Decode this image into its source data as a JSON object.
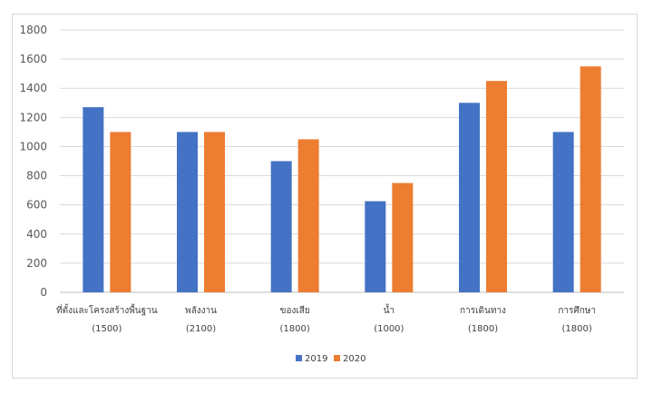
{
  "chart_data": {
    "type": "bar",
    "categories": [
      {
        "label": "ที่ตั้งและโครงสร้างพื้นฐาน",
        "sub": "(1500)"
      },
      {
        "label": "พลังงาน",
        "sub": "(2100)"
      },
      {
        "label": "ของเสีย",
        "sub": "(1800)"
      },
      {
        "label": "น้ำ",
        "sub": "(1000)"
      },
      {
        "label": "การเดินทาง",
        "sub": "(1800)"
      },
      {
        "label": "การศึกษา",
        "sub": "(1800)"
      }
    ],
    "series": [
      {
        "name": "2019",
        "color": "#4472c4",
        "values": [
          1270,
          1100,
          900,
          625,
          1300,
          1100
        ]
      },
      {
        "name": "2020",
        "color": "#ed7d31",
        "values": [
          1100,
          1100,
          1050,
          750,
          1450,
          1550
        ]
      }
    ],
    "ylim": [
      0,
      1800
    ],
    "yticks": [
      "0",
      "200",
      "400",
      "600",
      "800",
      "1000",
      "1200",
      "1400",
      "1600",
      "1800"
    ],
    "grid": true,
    "legend_position": "bottom"
  }
}
